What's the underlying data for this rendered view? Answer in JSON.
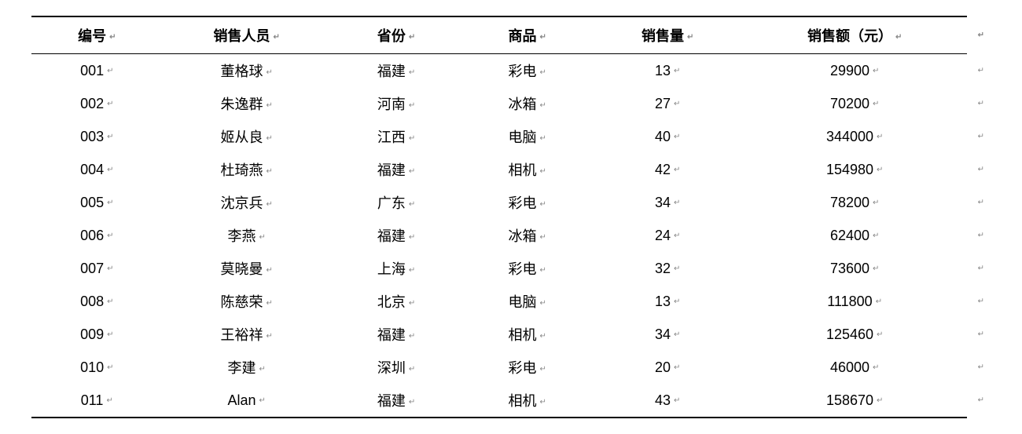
{
  "table": {
    "columns": [
      "编号",
      "销售人员",
      "省份",
      "商品",
      "销售量",
      "销售额（元）"
    ],
    "column_widths_pct": [
      14,
      18,
      14,
      14,
      16,
      24
    ],
    "header_fontsize": 18,
    "header_fontweight": "bold",
    "body_fontsize": 18,
    "text_color": "#000000",
    "background_color": "#ffffff",
    "border_color": "#000000",
    "top_border_width": 2,
    "header_bottom_border_width": 1.5,
    "bottom_border_width": 2,
    "paragraph_mark": "↵",
    "paragraph_mark_color": "#888888",
    "rows": [
      [
        "001",
        "董格球",
        "福建",
        "彩电",
        "13",
        "29900"
      ],
      [
        "002",
        "朱逸群",
        "河南",
        "冰箱",
        "27",
        "70200"
      ],
      [
        "003",
        "姬从良",
        "江西",
        "电脑",
        "40",
        "344000"
      ],
      [
        "004",
        "杜琦燕",
        "福建",
        "相机",
        "42",
        "154980"
      ],
      [
        "005",
        "沈京兵",
        "广东",
        "彩电",
        "34",
        "78200"
      ],
      [
        "006",
        "李燕",
        "福建",
        "冰箱",
        "24",
        "62400"
      ],
      [
        "007",
        "莫晓曼",
        "上海",
        "彩电",
        "32",
        "73600"
      ],
      [
        "008",
        "陈慈荣",
        "北京",
        "电脑",
        "13",
        "111800"
      ],
      [
        "009",
        "王裕祥",
        "福建",
        "相机",
        "34",
        "125460"
      ],
      [
        "010",
        "李建",
        "深圳",
        "彩电",
        "20",
        "46000"
      ],
      [
        "011",
        "Alan",
        "福建",
        "相机",
        "43",
        "158670"
      ]
    ]
  }
}
